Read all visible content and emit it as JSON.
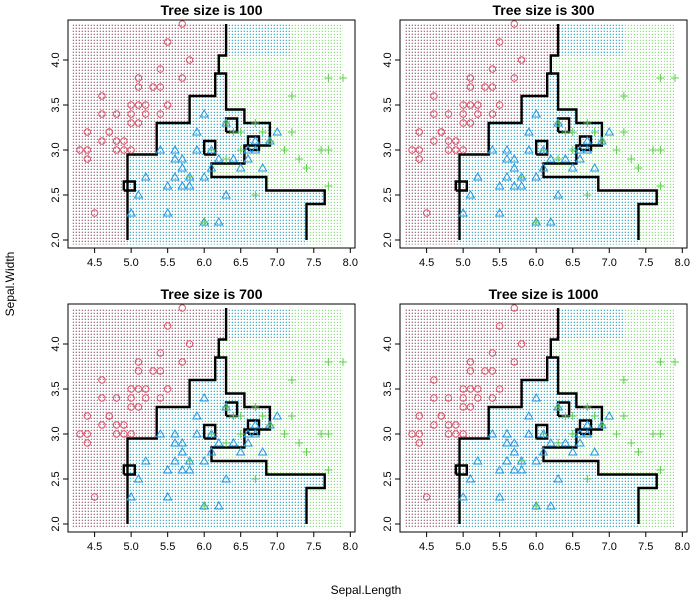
{
  "figure": {
    "xlabel": "Sepal.Length",
    "ylabel": "Sepal.Width"
  },
  "colors": {
    "setosa": "#df536b",
    "versicolor": "#2297e6",
    "virginica": "#61d04f",
    "boundary": "#000000"
  },
  "chart_data": [
    {
      "type": "scatter",
      "title": "Tree size is 100",
      "xlim": [
        4.3,
        7.9
      ],
      "ylim": [
        2.0,
        4.4
      ],
      "xticks": [
        "4.5",
        "5.0",
        "5.5",
        "6.0",
        "6.5",
        "7.0",
        "7.5",
        "8.0"
      ],
      "yticks": [
        "2.0",
        "2.5",
        "3.0",
        "3.5",
        "4.0"
      ],
      "grid": false,
      "series": [
        {
          "marker": "circle",
          "x": [
            4.3,
            4.4,
            4.4,
            4.4,
            4.5,
            4.6,
            4.6,
            4.6,
            4.7,
            4.7,
            4.8,
            4.8,
            4.8,
            4.9,
            4.9,
            5.0,
            5.0,
            5.0,
            5.0,
            5.1,
            5.1,
            5.1,
            5.1,
            5.2,
            5.2,
            5.3,
            5.4,
            5.4,
            5.4,
            5.5,
            5.5,
            5.7,
            5.7,
            5.8
          ],
          "y": [
            3.0,
            2.9,
            3.0,
            3.2,
            2.3,
            3.1,
            3.4,
            3.6,
            3.2,
            3.2,
            3.0,
            3.1,
            3.4,
            3.0,
            3.1,
            3.0,
            3.3,
            3.4,
            3.5,
            3.3,
            3.5,
            3.7,
            3.8,
            3.4,
            3.5,
            3.7,
            3.4,
            3.7,
            3.9,
            3.5,
            4.2,
            3.8,
            4.4,
            4.0
          ]
        },
        {
          "marker": "triangle",
          "x": [
            5.0,
            5.1,
            5.2,
            5.4,
            5.5,
            5.5,
            5.6,
            5.6,
            5.6,
            5.7,
            5.7,
            5.7,
            5.8,
            5.8,
            5.9,
            5.9,
            6.0,
            6.0,
            6.0,
            6.1,
            6.1,
            6.2,
            6.2,
            6.3,
            6.3,
            6.4,
            6.5,
            6.6,
            6.6,
            6.7,
            6.7,
            6.8,
            6.9,
            7.0
          ],
          "y": [
            2.3,
            2.5,
            2.7,
            3.0,
            2.3,
            2.6,
            2.7,
            2.9,
            3.0,
            2.6,
            2.8,
            2.9,
            2.6,
            2.7,
            3.0,
            3.2,
            2.2,
            2.7,
            3.4,
            2.8,
            3.0,
            2.2,
            2.9,
            2.5,
            3.3,
            2.9,
            2.8,
            2.9,
            3.0,
            3.0,
            3.1,
            2.8,
            3.1,
            3.2
          ]
        },
        {
          "marker": "plus",
          "x": [
            5.8,
            6.0,
            6.1,
            6.3,
            6.3,
            6.4,
            6.5,
            6.5,
            6.7,
            6.7,
            6.8,
            6.9,
            7.1,
            7.2,
            7.2,
            7.3,
            7.4,
            7.6,
            7.7,
            7.7,
            7.7,
            7.9
          ],
          "y": [
            2.7,
            2.2,
            3.0,
            2.9,
            3.3,
            3.2,
            3.0,
            3.2,
            2.5,
            3.3,
            3.2,
            3.1,
            3.0,
            3.2,
            3.6,
            2.9,
            2.8,
            3.0,
            2.6,
            3.0,
            3.8,
            3.8
          ]
        }
      ]
    },
    {
      "type": "scatter",
      "title": "Tree size is 300",
      "xlim": [
        4.3,
        7.9
      ],
      "ylim": [
        2.0,
        4.4
      ],
      "xticks": [
        "4.5",
        "5.0",
        "5.5",
        "6.0",
        "6.5",
        "7.0",
        "7.5",
        "8.0"
      ],
      "yticks": [
        "2.0",
        "2.5",
        "3.0",
        "3.5",
        "4.0"
      ],
      "grid": false,
      "series": [
        {
          "marker": "circle",
          "x": [
            4.3,
            4.4,
            4.4,
            4.4,
            4.5,
            4.6,
            4.6,
            4.6,
            4.7,
            4.7,
            4.8,
            4.8,
            4.8,
            4.9,
            4.9,
            5.0,
            5.0,
            5.0,
            5.0,
            5.1,
            5.1,
            5.1,
            5.1,
            5.2,
            5.2,
            5.3,
            5.4,
            5.4,
            5.4,
            5.5,
            5.5,
            5.7,
            5.7,
            5.8
          ],
          "y": [
            3.0,
            2.9,
            3.0,
            3.2,
            2.3,
            3.1,
            3.4,
            3.6,
            3.2,
            3.2,
            3.0,
            3.1,
            3.4,
            3.0,
            3.1,
            3.0,
            3.3,
            3.4,
            3.5,
            3.3,
            3.5,
            3.7,
            3.8,
            3.4,
            3.5,
            3.7,
            3.4,
            3.7,
            3.9,
            3.5,
            4.2,
            3.8,
            4.4,
            4.0
          ]
        },
        {
          "marker": "triangle",
          "x": [
            5.0,
            5.1,
            5.2,
            5.4,
            5.5,
            5.5,
            5.6,
            5.6,
            5.6,
            5.7,
            5.7,
            5.7,
            5.8,
            5.8,
            5.9,
            5.9,
            6.0,
            6.0,
            6.0,
            6.1,
            6.1,
            6.2,
            6.2,
            6.3,
            6.3,
            6.4,
            6.5,
            6.6,
            6.6,
            6.7,
            6.7,
            6.8,
            6.9,
            7.0
          ],
          "y": [
            2.3,
            2.5,
            2.7,
            3.0,
            2.3,
            2.6,
            2.7,
            2.9,
            3.0,
            2.6,
            2.8,
            2.9,
            2.6,
            2.7,
            3.0,
            3.2,
            2.2,
            2.7,
            3.4,
            2.8,
            3.0,
            2.2,
            2.9,
            2.5,
            3.3,
            2.9,
            2.8,
            2.9,
            3.0,
            3.0,
            3.1,
            2.8,
            3.1,
            3.2
          ]
        },
        {
          "marker": "plus",
          "x": [
            5.8,
            6.0,
            6.1,
            6.3,
            6.3,
            6.4,
            6.5,
            6.5,
            6.7,
            6.7,
            6.8,
            6.9,
            7.1,
            7.2,
            7.2,
            7.3,
            7.4,
            7.6,
            7.7,
            7.7,
            7.7,
            7.9
          ],
          "y": [
            2.7,
            2.2,
            3.0,
            2.9,
            3.3,
            3.2,
            3.0,
            3.2,
            2.5,
            3.3,
            3.2,
            3.1,
            3.0,
            3.2,
            3.6,
            2.9,
            2.8,
            3.0,
            2.6,
            3.0,
            3.8,
            3.8
          ]
        }
      ]
    },
    {
      "type": "scatter",
      "title": "Tree size is 700",
      "xlim": [
        4.3,
        7.9
      ],
      "ylim": [
        2.0,
        4.4
      ],
      "xticks": [
        "4.5",
        "5.0",
        "5.5",
        "6.0",
        "6.5",
        "7.0",
        "7.5",
        "8.0"
      ],
      "yticks": [
        "2.0",
        "2.5",
        "3.0",
        "3.5",
        "4.0"
      ],
      "grid": false,
      "series": [
        {
          "marker": "circle",
          "x": [
            4.3,
            4.4,
            4.4,
            4.4,
            4.5,
            4.6,
            4.6,
            4.6,
            4.7,
            4.7,
            4.8,
            4.8,
            4.8,
            4.9,
            4.9,
            5.0,
            5.0,
            5.0,
            5.0,
            5.1,
            5.1,
            5.1,
            5.1,
            5.2,
            5.2,
            5.3,
            5.4,
            5.4,
            5.4,
            5.5,
            5.5,
            5.7,
            5.7,
            5.8
          ],
          "y": [
            3.0,
            2.9,
            3.0,
            3.2,
            2.3,
            3.1,
            3.4,
            3.6,
            3.2,
            3.2,
            3.0,
            3.1,
            3.4,
            3.0,
            3.1,
            3.0,
            3.3,
            3.4,
            3.5,
            3.3,
            3.5,
            3.7,
            3.8,
            3.4,
            3.5,
            3.7,
            3.4,
            3.7,
            3.9,
            3.5,
            4.2,
            3.8,
            4.4,
            4.0
          ]
        },
        {
          "marker": "triangle",
          "x": [
            5.0,
            5.1,
            5.2,
            5.4,
            5.5,
            5.5,
            5.6,
            5.6,
            5.6,
            5.7,
            5.7,
            5.7,
            5.8,
            5.8,
            5.9,
            5.9,
            6.0,
            6.0,
            6.0,
            6.1,
            6.1,
            6.2,
            6.2,
            6.3,
            6.3,
            6.4,
            6.5,
            6.6,
            6.6,
            6.7,
            6.7,
            6.8,
            6.9,
            7.0
          ],
          "y": [
            2.3,
            2.5,
            2.7,
            3.0,
            2.3,
            2.6,
            2.7,
            2.9,
            3.0,
            2.6,
            2.8,
            2.9,
            2.6,
            2.7,
            3.0,
            3.2,
            2.2,
            2.7,
            3.4,
            2.8,
            3.0,
            2.2,
            2.9,
            2.5,
            3.3,
            2.9,
            2.8,
            2.9,
            3.0,
            3.0,
            3.1,
            2.8,
            3.1,
            3.2
          ]
        },
        {
          "marker": "plus",
          "x": [
            5.8,
            6.0,
            6.1,
            6.3,
            6.3,
            6.4,
            6.5,
            6.5,
            6.7,
            6.7,
            6.8,
            6.9,
            7.1,
            7.2,
            7.2,
            7.3,
            7.4,
            7.6,
            7.7,
            7.7,
            7.7,
            7.9
          ],
          "y": [
            2.7,
            2.2,
            3.0,
            2.9,
            3.3,
            3.2,
            3.0,
            3.2,
            2.5,
            3.3,
            3.2,
            3.1,
            3.0,
            3.2,
            3.6,
            2.9,
            2.8,
            3.0,
            2.6,
            3.0,
            3.8,
            3.8
          ]
        }
      ]
    },
    {
      "type": "scatter",
      "title": "Tree size is 1000",
      "xlim": [
        4.3,
        7.9
      ],
      "ylim": [
        2.0,
        4.4
      ],
      "xticks": [
        "4.5",
        "5.0",
        "5.5",
        "6.0",
        "6.5",
        "7.0",
        "7.5",
        "8.0"
      ],
      "yticks": [
        "2.0",
        "2.5",
        "3.0",
        "3.5",
        "4.0"
      ],
      "grid": false,
      "series": [
        {
          "marker": "circle",
          "x": [
            4.3,
            4.4,
            4.4,
            4.4,
            4.5,
            4.6,
            4.6,
            4.6,
            4.7,
            4.7,
            4.8,
            4.8,
            4.8,
            4.9,
            4.9,
            5.0,
            5.0,
            5.0,
            5.0,
            5.1,
            5.1,
            5.1,
            5.1,
            5.2,
            5.2,
            5.3,
            5.4,
            5.4,
            5.4,
            5.5,
            5.5,
            5.7,
            5.7,
            5.8
          ],
          "y": [
            3.0,
            2.9,
            3.0,
            3.2,
            2.3,
            3.1,
            3.4,
            3.6,
            3.2,
            3.2,
            3.0,
            3.1,
            3.4,
            3.0,
            3.1,
            3.0,
            3.3,
            3.4,
            3.5,
            3.3,
            3.5,
            3.7,
            3.8,
            3.4,
            3.5,
            3.7,
            3.4,
            3.7,
            3.9,
            3.5,
            4.2,
            3.8,
            4.4,
            4.0
          ]
        },
        {
          "marker": "triangle",
          "x": [
            5.0,
            5.1,
            5.2,
            5.4,
            5.5,
            5.5,
            5.6,
            5.6,
            5.6,
            5.7,
            5.7,
            5.7,
            5.8,
            5.8,
            5.9,
            5.9,
            6.0,
            6.0,
            6.0,
            6.1,
            6.1,
            6.2,
            6.2,
            6.3,
            6.3,
            6.4,
            6.5,
            6.6,
            6.6,
            6.7,
            6.7,
            6.8,
            6.9,
            7.0
          ],
          "y": [
            2.3,
            2.5,
            2.7,
            3.0,
            2.3,
            2.6,
            2.7,
            2.9,
            3.0,
            2.6,
            2.8,
            2.9,
            2.6,
            2.7,
            3.0,
            3.2,
            2.2,
            2.7,
            3.4,
            2.8,
            3.0,
            2.2,
            2.9,
            2.5,
            3.3,
            2.9,
            2.8,
            2.9,
            3.0,
            3.0,
            3.1,
            2.8,
            3.1,
            3.2
          ]
        },
        {
          "marker": "plus",
          "x": [
            5.8,
            6.0,
            6.1,
            6.3,
            6.3,
            6.4,
            6.5,
            6.5,
            6.7,
            6.7,
            6.8,
            6.9,
            7.1,
            7.2,
            7.2,
            7.3,
            7.4,
            7.6,
            7.7,
            7.7,
            7.7,
            7.9
          ],
          "y": [
            2.7,
            2.2,
            3.0,
            2.9,
            3.3,
            3.2,
            3.0,
            3.2,
            2.5,
            3.3,
            3.2,
            3.1,
            3.0,
            3.2,
            3.6,
            2.9,
            2.8,
            3.0,
            2.6,
            3.0,
            3.8,
            3.8
          ]
        }
      ]
    }
  ]
}
